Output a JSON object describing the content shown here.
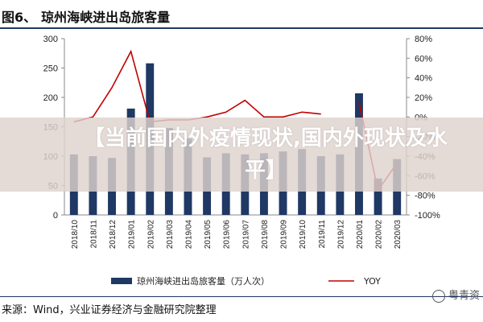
{
  "figure": {
    "number": "图6、",
    "title": "琼州海峡进出岛旅客量",
    "source": "来源：Wind，兴业证券经济与金融研究院整理",
    "banner": "【当前国内外疫情现状,国内外现状及水平】",
    "watermark": "粤青资"
  },
  "chart_data": {
    "type": "bar",
    "categories": [
      "2018/10",
      "2018/11",
      "2018/12",
      "2019/01",
      "2019/02",
      "2019/03",
      "2019/04",
      "2019/05",
      "2019/06",
      "2019/07",
      "2019/08",
      "2019/09",
      "2019/10",
      "2019/11",
      "2019/12",
      "2020/01",
      "2020/02",
      "2020/03"
    ],
    "series": [
      {
        "name": "琼州海峡进出岛旅客量（万人次）",
        "type": "bar",
        "axis": "left",
        "color": "#1f3864",
        "values": [
          103,
          100,
          97,
          181,
          258,
          148,
          130,
          98,
          105,
          103,
          105,
          108,
          112,
          100,
          103,
          207,
          62,
          95
        ]
      },
      {
        "name": "YOY",
        "type": "line",
        "axis": "right",
        "color": "#c00000",
        "values": [
          -5,
          0,
          30,
          67,
          -5,
          -3,
          -3,
          0,
          5,
          17,
          0,
          0,
          5,
          3,
          null,
          15,
          -75,
          -47
        ]
      }
    ],
    "y_left": {
      "min": 0,
      "max": 300,
      "ticks": [
        0,
        50,
        100,
        150,
        200,
        250,
        300
      ]
    },
    "y_right": {
      "min": -100,
      "max": 80,
      "ticks": [
        -100,
        -80,
        -60,
        -40,
        -20,
        0,
        20,
        40,
        60,
        80
      ],
      "unit": "%"
    },
    "grid": false,
    "legend_position": "bottom"
  }
}
